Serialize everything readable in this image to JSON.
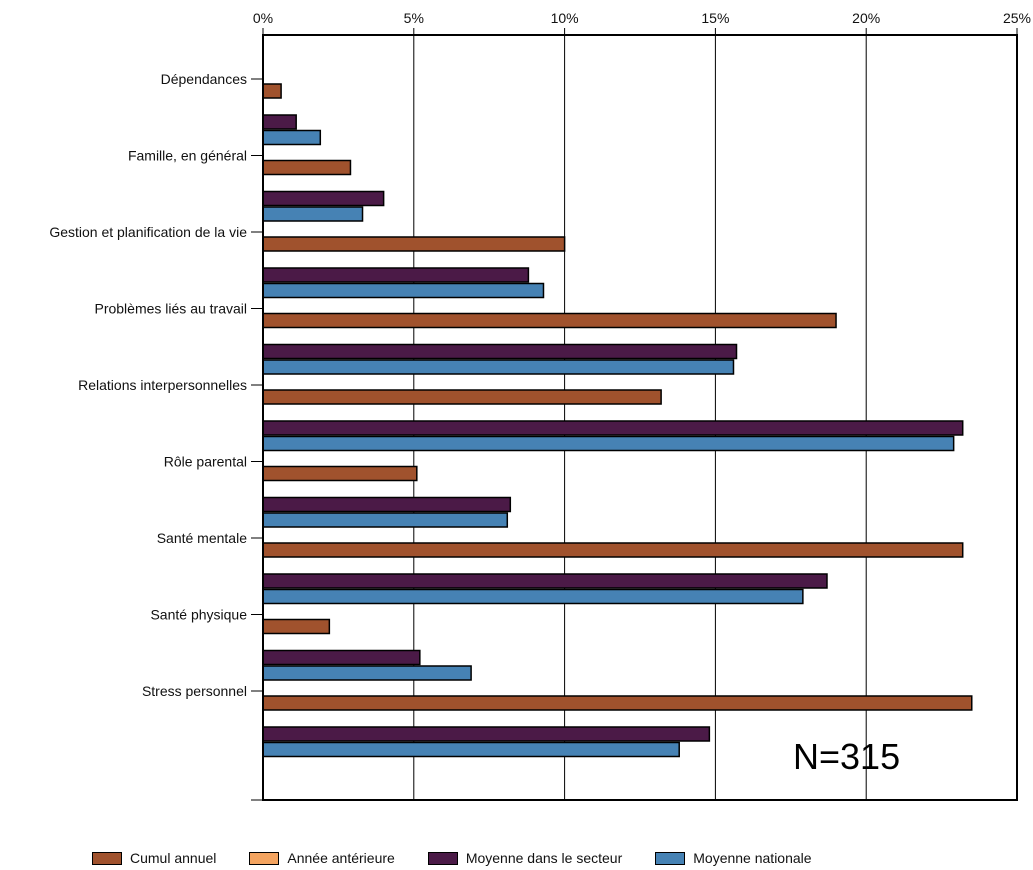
{
  "chart_data": {
    "type": "bar",
    "orientation": "horizontal",
    "categories": [
      "Dépendances",
      "Famille, en général",
      "Gestion et planification de la vie",
      "Problèmes liés au travail",
      "Relations interpersonnelles",
      "Rôle parental",
      "Santé mentale",
      "Santé physique",
      "Stress personnel"
    ],
    "series": [
      {
        "name": "Cumul annuel",
        "color": "#a0522d",
        "values": [
          0.6,
          2.9,
          10.0,
          19.0,
          13.2,
          5.1,
          23.2,
          2.2,
          23.5
        ]
      },
      {
        "name": "Année antérieure",
        "color": "#f4a460",
        "values": [
          null,
          null,
          null,
          null,
          null,
          null,
          null,
          null,
          null
        ]
      },
      {
        "name": "Moyenne dans le secteur",
        "color": "#4b1a47",
        "values": [
          1.1,
          4.0,
          8.8,
          15.7,
          23.2,
          8.2,
          18.7,
          5.2,
          14.8
        ]
      },
      {
        "name": "Moyenne nationale",
        "color": "#4682b4",
        "values": [
          1.9,
          3.3,
          9.3,
          15.6,
          22.9,
          8.1,
          17.9,
          6.9,
          13.8
        ]
      }
    ],
    "xticks": [
      "0%",
      "5%",
      "10%",
      "15%",
      "20%",
      "25%"
    ],
    "xlim": [
      0,
      25
    ],
    "grid": true,
    "legend_position": "bottom",
    "annotation": "N=315"
  }
}
